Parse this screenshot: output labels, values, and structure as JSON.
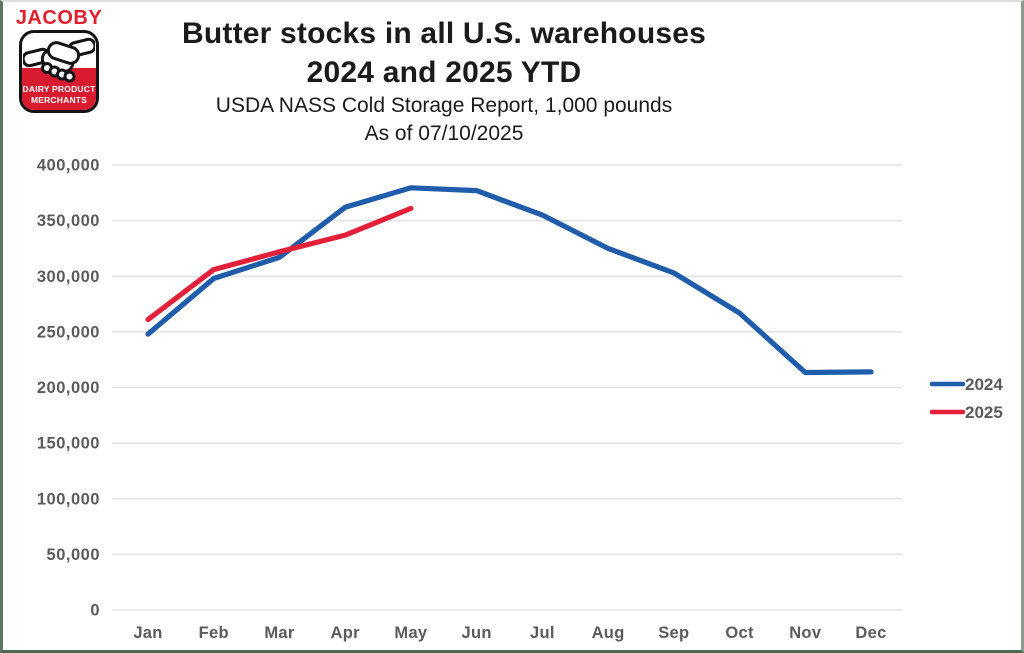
{
  "logo": {
    "brand": "JACOBY",
    "badge_line1": "DAIRY PRODUCT",
    "badge_line2": "MERCHANTS"
  },
  "title": {
    "line1": "Butter stocks in all U.S. warehouses",
    "line2": "2024 and 2025 YTD",
    "subtitle_line1": "USDA NASS Cold Storage Report, 1,000 pounds",
    "subtitle_line2": "As of 07/10/2025"
  },
  "chart_data": {
    "type": "line",
    "title": "Butter stocks in all U.S. warehouses 2024 and 2025 YTD",
    "subtitle": "USDA NASS Cold Storage Report, 1,000 pounds",
    "as_of": "As of 07/10/2025",
    "categories": [
      "Jan",
      "Feb",
      "Mar",
      "Apr",
      "May",
      "Jun",
      "Jul",
      "Aug",
      "Sep",
      "Oct",
      "Nov",
      "Dec"
    ],
    "series": [
      {
        "name": "2024",
        "color": "#1F5CA9",
        "values": [
          248000,
          298000,
          317000,
          362000,
          379500,
          377000,
          355000,
          325000,
          303000,
          267000,
          213500,
          214000
        ]
      },
      {
        "name": "2025",
        "color": "#E2203A",
        "values": [
          261000,
          306000,
          322000,
          337000,
          361000
        ]
      }
    ],
    "ylim": [
      0,
      400000
    ],
    "ytick_step": 50000,
    "ytick_labels": [
      "0",
      "50,000",
      "100,000",
      "150,000",
      "200,000",
      "250,000",
      "300,000",
      "350,000",
      "400,000"
    ],
    "xlabel": "",
    "ylabel": "",
    "grid": "horizontal-only",
    "legend_position": "right"
  },
  "colors": {
    "series_2024": "#1F5CA9",
    "series_2025": "#E2203A",
    "axis_text": "#5B5B5B",
    "gridline": "#E3E3E3",
    "title_text": "#1B1B1B",
    "brand_red": "#E0202F",
    "badge_red": "#D91B2F"
  }
}
